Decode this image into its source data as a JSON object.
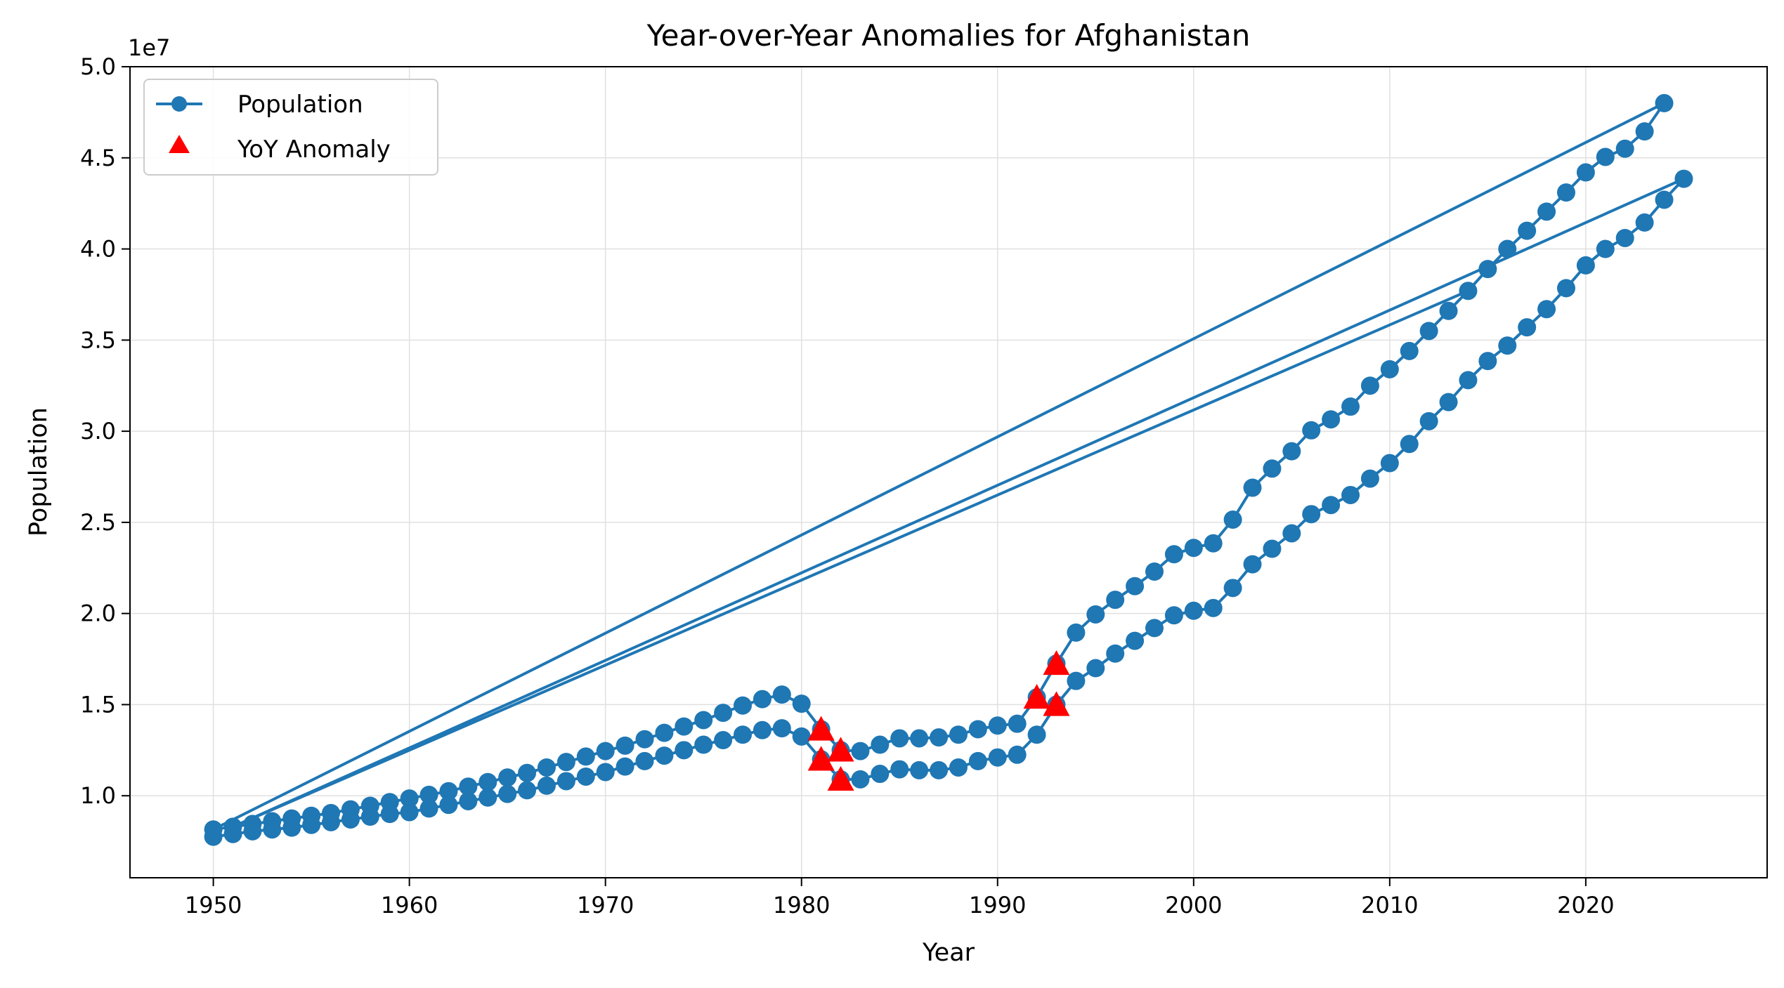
{
  "chart_data": {
    "type": "line",
    "title": "Year-over-Year Anomalies for Afghanistan",
    "xlabel": "Year",
    "ylabel": "Population",
    "y_offset_label": "1e7",
    "xlim": [
      1945.75,
      2029.25
    ],
    "ylim": [
      5500000,
      50000000
    ],
    "xticks": [
      1950,
      1960,
      1970,
      1980,
      1990,
      2000,
      2010,
      2020
    ],
    "xtick_labels": [
      "1950",
      "1960",
      "1970",
      "1980",
      "1990",
      "2000",
      "2010",
      "2020"
    ],
    "yticks": [
      10000000,
      15000000,
      20000000,
      25000000,
      30000000,
      35000000,
      40000000,
      45000000,
      50000000
    ],
    "ytick_labels": [
      "1.0",
      "1.5",
      "2.0",
      "2.5",
      "3.0",
      "3.5",
      "4.0",
      "4.5",
      "5.0"
    ],
    "grid": true,
    "legend_position": "top-left",
    "legend": [
      "Population",
      "YoY Anomaly"
    ],
    "colors": {
      "line": "#1f77b4",
      "anomaly": "#ff0000",
      "grid": "#e0e0e0"
    },
    "series": [
      {
        "name": "Population",
        "style": "line-with-circle-markers",
        "segments": [
          {
            "x": [
              1950,
              1951,
              1952,
              1953,
              1954,
              1955,
              1956,
              1957,
              1958,
              1959,
              1960,
              1961,
              1962,
              1963,
              1964,
              1965,
              1966,
              1967,
              1968,
              1969,
              1970,
              1971,
              1972,
              1973,
              1974,
              1975,
              1976,
              1977,
              1978,
              1979,
              1980,
              1981,
              1982,
              1983,
              1984,
              1985,
              1986,
              1987,
              1988,
              1989,
              1990,
              1991,
              1992,
              1993,
              1994,
              1995,
              1996,
              1997,
              1998,
              1999,
              2000,
              2001,
              2002,
              2003,
              2004,
              2005,
              2006,
              2007,
              2008,
              2009,
              2010,
              2011,
              2012,
              2013,
              2014,
              2015,
              2016,
              2017,
              2018,
              2019,
              2020,
              2021,
              2022,
              2023,
              2024
            ],
            "y": [
              8150000,
              8300000,
              8450000,
              8600000,
              8750000,
              8900000,
              9050000,
              9250000,
              9450000,
              9650000,
              9850000,
              10050000,
              10250000,
              10500000,
              10750000,
              11000000,
              11250000,
              11550000,
              11850000,
              12150000,
              12450000,
              12750000,
              13100000,
              13450000,
              13800000,
              14150000,
              14550000,
              14950000,
              15300000,
              15550000,
              15050000,
              13650000,
              12500000,
              12450000,
              12800000,
              13150000,
              13150000,
              13200000,
              13350000,
              13650000,
              13850000,
              13950000,
              15400000,
              17250000,
              18950000,
              19950000,
              20750000,
              21500000,
              22300000,
              23250000,
              23600000,
              23850000,
              25150000,
              26900000,
              27950000,
              28900000,
              30050000,
              30650000,
              31350000,
              32500000,
              33400000,
              34400000,
              35500000,
              36600000,
              37700000,
              38900000,
              40000000,
              41000000,
              42050000,
              43100000,
              44200000,
              45050000,
              45500000,
              46450000,
              48000000
            ]
          },
          {
            "x": [
              2024,
              1950
            ],
            "y": [
              48000000,
              8150000
            ]
          },
          {
            "x": [
              1950,
              1951,
              1952,
              1953,
              1954,
              1955,
              1956,
              1957,
              1958,
              1959,
              1960,
              1961,
              1962,
              1963,
              1964,
              1965,
              1966,
              1967,
              1968,
              1969,
              1970,
              1971,
              1972,
              1973,
              1974,
              1975,
              1976,
              1977,
              1978,
              1979,
              1980,
              1981,
              1982,
              1983,
              1984,
              1985,
              1986,
              1987,
              1988,
              1989,
              1990,
              1991,
              1992,
              1993,
              1994,
              1995,
              1996,
              1997,
              1998,
              1999,
              2000,
              2001,
              2002,
              2003,
              2004,
              2005,
              2006,
              2007,
              2008,
              2009,
              2010,
              2011,
              2012,
              2013,
              2014,
              2015,
              2016,
              2017,
              2018,
              2019,
              2020,
              2021,
              2022,
              2023,
              2024,
              2025
            ],
            "y": [
              7750000,
              7900000,
              8050000,
              8150000,
              8250000,
              8400000,
              8550000,
              8700000,
              8850000,
              9000000,
              9100000,
              9300000,
              9500000,
              9700000,
              9900000,
              10100000,
              10300000,
              10550000,
              10800000,
              11050000,
              11300000,
              11600000,
              11900000,
              12200000,
              12500000,
              12800000,
              13050000,
              13350000,
              13600000,
              13700000,
              13250000,
              12000000,
              10900000,
              10900000,
              11200000,
              11450000,
              11400000,
              11400000,
              11550000,
              11900000,
              12100000,
              12250000,
              13350000,
              15000000,
              16300000,
              17000000,
              17800000,
              18500000,
              19200000,
              19900000,
              20150000,
              20300000,
              21400000,
              22700000,
              23550000,
              24400000,
              25450000,
              25950000,
              26500000,
              27400000,
              28250000,
              29300000,
              30550000,
              31600000,
              32800000,
              33850000,
              34700000,
              35700000,
              36700000,
              37850000,
              39100000,
              40000000,
              40600000,
              41450000,
              42700000,
              43850000
            ]
          },
          {
            "x": [
              2025,
              1951,
              2014
            ],
            "y": [
              43850000,
              8300000,
              37700000
            ]
          }
        ]
      },
      {
        "name": "YoY Anomaly",
        "style": "triangle-markers",
        "x": [
          1981,
          1981,
          1982,
          1982,
          1992,
          1993,
          1993
        ],
        "y": [
          13650000,
          12000000,
          12500000,
          10900000,
          15400000,
          17250000,
          15000000
        ]
      }
    ]
  }
}
